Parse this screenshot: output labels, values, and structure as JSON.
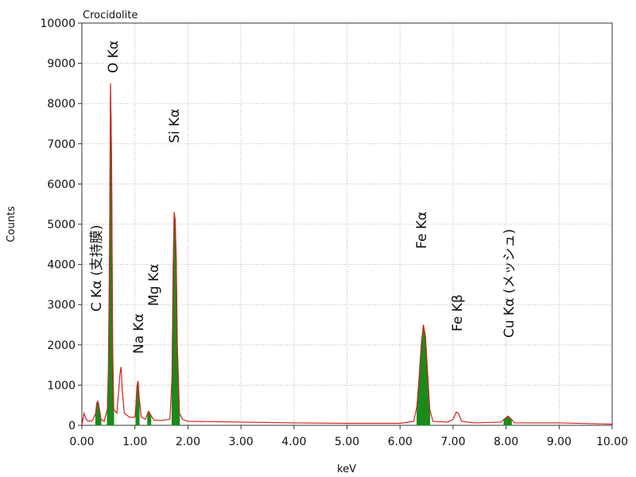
{
  "chart_data": {
    "type": "spectrum",
    "title": "Crocidolite",
    "x_label": "keV",
    "y_label": "Counts",
    "xlim": [
      0,
      10
    ],
    "ylim": [
      0,
      10000
    ],
    "xticks": [
      {
        "value": 0,
        "label": "0.00"
      },
      {
        "value": 1,
        "label": "1.00"
      },
      {
        "value": 2,
        "label": "2.00"
      },
      {
        "value": 3,
        "label": "3.00"
      },
      {
        "value": 4,
        "label": "4.00"
      },
      {
        "value": 5,
        "label": "5.00"
      },
      {
        "value": 6,
        "label": "6.00"
      },
      {
        "value": 7,
        "label": "7.00"
      },
      {
        "value": 8,
        "label": "8.00"
      },
      {
        "value": 9,
        "label": "9.00"
      },
      {
        "value": 10,
        "label": "10.00"
      }
    ],
    "yticks": [
      0,
      1000,
      2000,
      3000,
      4000,
      5000,
      6000,
      7000,
      8000,
      9000,
      10000
    ],
    "grid": true,
    "annotations": [
      "O Kα",
      "Si Kα",
      "C Kα (支持膜)",
      "Na Kα",
      "Mg Kα",
      "Fe Kα",
      "Fe Kβ",
      "Cu Kα (メッシュ)"
    ],
    "series": [
      {
        "kind": "line",
        "color": "#d42020",
        "x": [
          0,
          0.04,
          0.08,
          0.12,
          0.2,
          0.26,
          0.28,
          0.3,
          0.32,
          0.36,
          0.42,
          0.48,
          0.5,
          0.52,
          0.54,
          0.56,
          0.58,
          0.6,
          0.66,
          0.72,
          0.74,
          0.76,
          0.8,
          0.9,
          1,
          1.02,
          1.04,
          1.06,
          1.08,
          1.12,
          1.2,
          1.24,
          1.26,
          1.3,
          1.36,
          1.5,
          1.66,
          1.7,
          1.72,
          1.74,
          1.76,
          1.78,
          1.8,
          1.84,
          1.9,
          2,
          3,
          4,
          5,
          6,
          6.26,
          6.32,
          6.36,
          6.4,
          6.44,
          6.48,
          6.52,
          6.56,
          6.62,
          6.9,
          7,
          7.06,
          7.1,
          7.16,
          7.4,
          7.9,
          7.96,
          8.04,
          8.1,
          8.16,
          9,
          10
        ],
        "values": [
          0,
          300,
          150,
          100,
          120,
          300,
          550,
          600,
          500,
          150,
          100,
          400,
          1400,
          4000,
          8500,
          6700,
          2000,
          400,
          300,
          1300,
          1450,
          900,
          300,
          200,
          200,
          500,
          1000,
          1100,
          700,
          200,
          150,
          300,
          350,
          250,
          130,
          120,
          150,
          1200,
          3800,
          5300,
          5100,
          4100,
          2000,
          300,
          150,
          100,
          80,
          60,
          50,
          50,
          100,
          500,
          1200,
          2000,
          2500,
          2200,
          1300,
          400,
          100,
          80,
          150,
          330,
          300,
          100,
          60,
          80,
          150,
          230,
          150,
          60,
          60,
          30
        ]
      },
      {
        "kind": "area",
        "color": "#1a8a1a",
        "x": [
          0.26,
          0.28,
          0.3,
          0.32,
          0.36,
          null,
          0.48,
          0.5,
          0.52,
          0.54,
          0.56,
          0.58,
          0.6,
          null,
          1.02,
          1.04,
          1.06,
          1.08,
          null,
          1.24,
          1.26,
          1.3,
          null,
          1.7,
          1.72,
          1.74,
          1.76,
          1.78,
          1.8,
          1.84,
          null,
          6.32,
          6.36,
          6.4,
          6.44,
          6.48,
          6.52,
          6.56,
          null,
          7.96,
          8.04,
          8.1
        ],
        "values": [
          300,
          550,
          600,
          500,
          150,
          null,
          400,
          1400,
          4000,
          8500,
          6700,
          2000,
          400,
          null,
          500,
          1000,
          1100,
          700,
          null,
          300,
          350,
          250,
          null,
          1200,
          3800,
          5300,
          5100,
          4100,
          2000,
          300,
          null,
          500,
          1200,
          2000,
          2500,
          2200,
          1300,
          400,
          null,
          150,
          230,
          150
        ]
      }
    ]
  }
}
